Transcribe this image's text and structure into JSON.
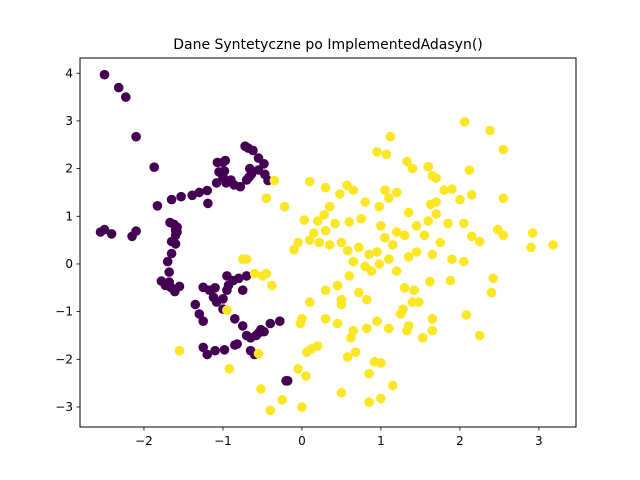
{
  "chart_data": {
    "type": "scatter",
    "title": "Dane Syntetyczne po ImplementedAdasyn()",
    "xlabel": "",
    "ylabel": "",
    "xlim": [
      -2.81,
      3.47
    ],
    "ylim": [
      -3.42,
      4.32
    ],
    "xticks": [
      -2,
      -1,
      0,
      1,
      2,
      3
    ],
    "xtick_labels": [
      "−2",
      "−1",
      "0",
      "1",
      "2",
      "3"
    ],
    "yticks": [
      -3,
      -2,
      -1,
      0,
      1,
      2,
      3,
      4
    ],
    "ytick_labels": [
      "−3",
      "−2",
      "−1",
      "0",
      "1",
      "2",
      "3",
      "4"
    ],
    "grid": false,
    "series": [
      {
        "color": "#440154",
        "points": [
          [
            -2.5,
            3.97
          ],
          [
            -2.32,
            3.7
          ],
          [
            -2.23,
            3.5
          ],
          [
            -2.1,
            2.67
          ],
          [
            -1.87,
            2.03
          ],
          [
            -2.55,
            0.67
          ],
          [
            -2.5,
            0.72
          ],
          [
            -2.41,
            0.63
          ],
          [
            -2.15,
            0.58
          ],
          [
            -2.1,
            0.69
          ],
          [
            -1.83,
            1.22
          ],
          [
            -1.65,
            1.35
          ],
          [
            -1.53,
            1.41
          ],
          [
            -1.39,
            1.44
          ],
          [
            -1.3,
            1.5
          ],
          [
            -1.2,
            1.54
          ],
          [
            -1.19,
            1.27
          ],
          [
            -1.08,
            1.7
          ],
          [
            -1.0,
            1.82
          ],
          [
            -0.96,
            1.7
          ],
          [
            -0.9,
            1.76
          ],
          [
            -0.86,
            1.66
          ],
          [
            -0.78,
            1.62
          ],
          [
            -0.7,
            1.76
          ],
          [
            -0.67,
            1.82
          ],
          [
            -0.64,
            1.88
          ],
          [
            -0.72,
            2.47
          ],
          [
            -0.68,
            2.43
          ],
          [
            -0.62,
            2.38
          ],
          [
            -0.55,
            2.22
          ],
          [
            -0.48,
            2.1
          ],
          [
            -0.55,
            1.97
          ],
          [
            -0.47,
            1.88
          ],
          [
            -0.43,
            1.75
          ],
          [
            -0.66,
            2.0
          ],
          [
            -1.07,
            2.13
          ],
          [
            -1.0,
            2.13
          ],
          [
            -0.97,
            2.17
          ],
          [
            -0.98,
            1.95
          ],
          [
            -1.05,
            1.93
          ],
          [
            -1.67,
            0.87
          ],
          [
            -1.62,
            0.83
          ],
          [
            -1.58,
            0.77
          ],
          [
            -1.6,
            0.6
          ],
          [
            -1.65,
            0.47
          ],
          [
            -1.6,
            0.42
          ],
          [
            -1.65,
            0.22
          ],
          [
            -1.7,
            0.05
          ],
          [
            -1.68,
            -0.17
          ],
          [
            -1.6,
            0.71
          ],
          [
            -1.58,
            0.67
          ],
          [
            -1.78,
            -0.36
          ],
          [
            -1.73,
            -0.45
          ],
          [
            -1.66,
            -0.49
          ],
          [
            -1.61,
            -0.58
          ],
          [
            -1.55,
            -0.47
          ],
          [
            -1.68,
            -0.38
          ],
          [
            -1.25,
            -0.49
          ],
          [
            -1.17,
            -0.55
          ],
          [
            -1.1,
            -0.5
          ],
          [
            -1.12,
            -0.7
          ],
          [
            -1.08,
            -0.8
          ],
          [
            -1.0,
            -0.73
          ],
          [
            -0.95,
            -0.55
          ],
          [
            -0.93,
            -0.45
          ],
          [
            -0.87,
            -0.35
          ],
          [
            -0.8,
            -0.3
          ],
          [
            -0.7,
            -0.25
          ],
          [
            -1.35,
            -0.85
          ],
          [
            -1.3,
            -1.05
          ],
          [
            -1.25,
            -1.2
          ],
          [
            -1.0,
            -0.95
          ],
          [
            -0.85,
            -1.15
          ],
          [
            -0.75,
            -1.3
          ],
          [
            -0.7,
            -1.5
          ],
          [
            -0.65,
            -1.55
          ],
          [
            -0.58,
            -1.5
          ],
          [
            -0.55,
            -1.45
          ],
          [
            -0.52,
            -1.38
          ],
          [
            -0.48,
            -1.42
          ],
          [
            -0.4,
            -1.25
          ],
          [
            -0.28,
            -1.2
          ],
          [
            -1.25,
            -1.75
          ],
          [
            -1.2,
            -1.9
          ],
          [
            -1.1,
            -1.82
          ],
          [
            -0.98,
            -1.8
          ],
          [
            -0.85,
            -1.7
          ],
          [
            -0.82,
            -1.68
          ],
          [
            -0.65,
            -1.82
          ],
          [
            -0.6,
            -1.9
          ],
          [
            -0.2,
            -2.45
          ],
          [
            -0.18,
            -2.45
          ],
          [
            -0.95,
            -0.25
          ],
          [
            -0.75,
            -0.55
          ]
        ]
      },
      {
        "color": "#fde725",
        "points": [
          [
            2.06,
            2.98
          ],
          [
            2.38,
            2.8
          ],
          [
            2.55,
            2.4
          ],
          [
            1.12,
            2.67
          ],
          [
            0.95,
            2.35
          ],
          [
            1.07,
            2.3
          ],
          [
            1.33,
            2.15
          ],
          [
            1.6,
            2.04
          ],
          [
            1.4,
            2.0
          ],
          [
            1.65,
            1.85
          ],
          [
            1.7,
            1.8
          ],
          [
            2.12,
            1.97
          ],
          [
            1.8,
            1.55
          ],
          [
            1.9,
            1.57
          ],
          [
            1.7,
            1.3
          ],
          [
            2.0,
            1.35
          ],
          [
            2.15,
            1.45
          ],
          [
            2.55,
            1.38
          ],
          [
            1.63,
            1.25
          ],
          [
            1.35,
            1.08
          ],
          [
            1.2,
            1.5
          ],
          [
            1.05,
            1.55
          ],
          [
            1.1,
            1.38
          ],
          [
            0.98,
            1.2
          ],
          [
            0.8,
            1.3
          ],
          [
            0.65,
            1.55
          ],
          [
            0.57,
            1.65
          ],
          [
            0.48,
            1.47
          ],
          [
            0.35,
            1.2
          ],
          [
            0.1,
            1.73
          ],
          [
            0.3,
            1.6
          ],
          [
            -0.35,
            1.75
          ],
          [
            -0.45,
            1.38
          ],
          [
            -0.22,
            1.2
          ],
          [
            0.03,
            0.92
          ],
          [
            0.2,
            0.9
          ],
          [
            0.28,
            1.03
          ],
          [
            0.42,
            0.85
          ],
          [
            0.6,
            0.88
          ],
          [
            0.75,
            0.95
          ],
          [
            1.0,
            0.8
          ],
          [
            1.2,
            0.67
          ],
          [
            1.3,
            0.6
          ],
          [
            1.55,
            0.6
          ],
          [
            1.45,
            0.8
          ],
          [
            1.6,
            0.9
          ],
          [
            1.7,
            1.05
          ],
          [
            1.85,
            0.85
          ],
          [
            2.05,
            0.85
          ],
          [
            2.15,
            0.58
          ],
          [
            2.25,
            0.47
          ],
          [
            2.48,
            0.72
          ],
          [
            2.92,
            0.65
          ],
          [
            2.9,
            0.35
          ],
          [
            3.18,
            0.4
          ],
          [
            0.1,
            0.5
          ],
          [
            -0.05,
            0.45
          ],
          [
            -0.1,
            0.3
          ],
          [
            0.22,
            0.45
          ],
          [
            0.35,
            0.4
          ],
          [
            0.5,
            0.45
          ],
          [
            0.58,
            0.28
          ],
          [
            0.72,
            0.35
          ],
          [
            0.85,
            0.2
          ],
          [
            0.95,
            0.25
          ],
          [
            1.05,
            0.55
          ],
          [
            1.15,
            0.4
          ],
          [
            1.35,
            0.15
          ],
          [
            1.45,
            0.25
          ],
          [
            1.65,
            0.2
          ],
          [
            1.75,
            0.45
          ],
          [
            1.9,
            0.1
          ],
          [
            2.05,
            0.05
          ],
          [
            1.62,
            -0.37
          ],
          [
            1.88,
            -0.35
          ],
          [
            2.42,
            -0.3
          ],
          [
            2.4,
            -0.6
          ],
          [
            2.08,
            -1.07
          ],
          [
            2.25,
            -1.5
          ],
          [
            0.65,
            0.05
          ],
          [
            0.8,
            -0.05
          ],
          [
            0.98,
            0.0
          ],
          [
            1.1,
            0.1
          ],
          [
            1.3,
            -0.5
          ],
          [
            1.42,
            -0.55
          ],
          [
            1.4,
            -0.8
          ],
          [
            1.48,
            -0.8
          ],
          [
            1.25,
            -1.05
          ],
          [
            1.35,
            -1.3
          ],
          [
            1.33,
            -1.4
          ],
          [
            1.1,
            -1.35
          ],
          [
            0.95,
            -1.2
          ],
          [
            0.82,
            -0.75
          ],
          [
            0.72,
            -0.6
          ],
          [
            0.5,
            -0.75
          ],
          [
            0.45,
            -0.45
          ],
          [
            0.6,
            -0.25
          ],
          [
            0.3,
            -0.55
          ],
          [
            0.1,
            -0.8
          ],
          [
            0.0,
            -1.15
          ],
          [
            -0.02,
            -1.25
          ],
          [
            0.5,
            -0.85
          ],
          [
            0.3,
            -1.15
          ],
          [
            0.45,
            -1.25
          ],
          [
            0.65,
            -1.4
          ],
          [
            0.82,
            -1.35
          ],
          [
            0.62,
            -1.55
          ],
          [
            0.2,
            -1.72
          ],
          [
            0.12,
            -1.78
          ],
          [
            0.06,
            -1.85
          ],
          [
            0.58,
            -1.95
          ],
          [
            0.68,
            -1.85
          ],
          [
            0.85,
            -2.3
          ],
          [
            0.92,
            -2.05
          ],
          [
            1.0,
            -2.08
          ],
          [
            1.15,
            -2.55
          ],
          [
            0.85,
            -2.9
          ],
          [
            1.0,
            -2.82
          ],
          [
            0.5,
            -2.7
          ],
          [
            -0.05,
            -2.2
          ],
          [
            0.05,
            -2.35
          ],
          [
            -0.25,
            -2.85
          ],
          [
            0.0,
            -3.0
          ],
          [
            -0.4,
            -3.07
          ],
          [
            -0.52,
            -2.62
          ],
          [
            -0.55,
            -1.88
          ],
          [
            -0.92,
            -2.2
          ],
          [
            -1.55,
            -1.82
          ],
          [
            -0.95,
            -0.97
          ],
          [
            -0.75,
            0.1
          ],
          [
            -0.7,
            0.1
          ],
          [
            -0.6,
            -0.2
          ],
          [
            -0.5,
            -0.25
          ],
          [
            -0.45,
            -0.2
          ],
          [
            -0.38,
            -0.45
          ],
          [
            0.3,
            0.7
          ],
          [
            0.15,
            0.65
          ],
          [
            1.65,
            -1.15
          ],
          [
            1.65,
            -1.4
          ],
          [
            1.53,
            -1.55
          ],
          [
            2.55,
            0.6
          ],
          [
            0.88,
            -0.15
          ],
          [
            1.2,
            -0.15
          ],
          [
            1.28,
            -0.95
          ]
        ]
      }
    ]
  }
}
